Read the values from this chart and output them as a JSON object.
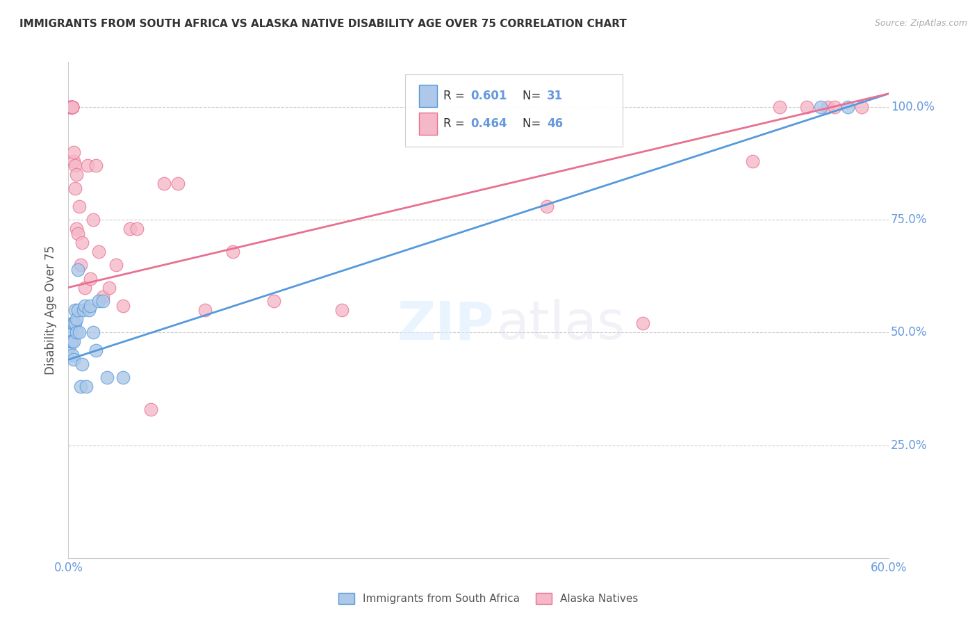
{
  "title": "IMMIGRANTS FROM SOUTH AFRICA VS ALASKA NATIVE DISABILITY AGE OVER 75 CORRELATION CHART",
  "source": "Source: ZipAtlas.com",
  "ylabel": "Disability Age Over 75",
  "legend_label_blue": "Immigrants from South Africa",
  "legend_label_pink": "Alaska Natives",
  "blue_color": "#adc8e8",
  "pink_color": "#f5b8c8",
  "line_blue": "#5599dd",
  "line_pink": "#e87090",
  "text_color_right": "#6699dd",
  "title_color": "#333333",
  "blue_points_x": [
    0.001,
    0.002,
    0.002,
    0.003,
    0.003,
    0.003,
    0.004,
    0.004,
    0.004,
    0.005,
    0.005,
    0.006,
    0.006,
    0.007,
    0.007,
    0.008,
    0.009,
    0.01,
    0.011,
    0.012,
    0.013,
    0.015,
    0.016,
    0.018,
    0.02,
    0.022,
    0.025,
    0.028,
    0.04,
    0.55,
    0.57
  ],
  "blue_points_y": [
    0.47,
    0.5,
    0.48,
    0.45,
    0.48,
    0.52,
    0.44,
    0.48,
    0.52,
    0.52,
    0.55,
    0.5,
    0.53,
    0.55,
    0.64,
    0.5,
    0.38,
    0.43,
    0.55,
    0.56,
    0.38,
    0.55,
    0.56,
    0.5,
    0.46,
    0.57,
    0.57,
    0.4,
    0.4,
    1.0,
    1.0
  ],
  "pink_points_x": [
    0.001,
    0.002,
    0.002,
    0.002,
    0.003,
    0.003,
    0.003,
    0.003,
    0.003,
    0.004,
    0.004,
    0.005,
    0.005,
    0.006,
    0.006,
    0.007,
    0.008,
    0.009,
    0.01,
    0.012,
    0.014,
    0.016,
    0.018,
    0.02,
    0.022,
    0.025,
    0.03,
    0.035,
    0.04,
    0.045,
    0.05,
    0.06,
    0.07,
    0.08,
    0.1,
    0.12,
    0.15,
    0.2,
    0.35,
    0.42,
    0.5,
    0.52,
    0.54,
    0.555,
    0.56,
    0.58
  ],
  "pink_points_y": [
    1.0,
    1.0,
    1.0,
    1.0,
    1.0,
    1.0,
    1.0,
    1.0,
    1.0,
    0.88,
    0.9,
    0.87,
    0.82,
    0.73,
    0.85,
    0.72,
    0.78,
    0.65,
    0.7,
    0.6,
    0.87,
    0.62,
    0.75,
    0.87,
    0.68,
    0.58,
    0.6,
    0.65,
    0.56,
    0.73,
    0.73,
    0.33,
    0.83,
    0.83,
    0.55,
    0.68,
    0.57,
    0.55,
    0.78,
    0.52,
    0.88,
    1.0,
    1.0,
    1.0,
    1.0,
    1.0
  ],
  "blue_line_x": [
    0.0,
    0.6
  ],
  "blue_line_y": [
    0.44,
    1.03
  ],
  "pink_line_x": [
    0.0,
    0.6
  ],
  "pink_line_y": [
    0.6,
    1.03
  ],
  "xlim": [
    0.0,
    0.6
  ],
  "ylim": [
    0.0,
    1.1
  ],
  "yticks": [
    0.25,
    0.5,
    0.75,
    1.0
  ],
  "ytick_labels": [
    "25.0%",
    "50.0%",
    "75.0%",
    "100.0%"
  ],
  "xtick_labels": [
    "0.0%",
    "",
    "",
    "",
    "",
    "",
    "60.0%"
  ]
}
